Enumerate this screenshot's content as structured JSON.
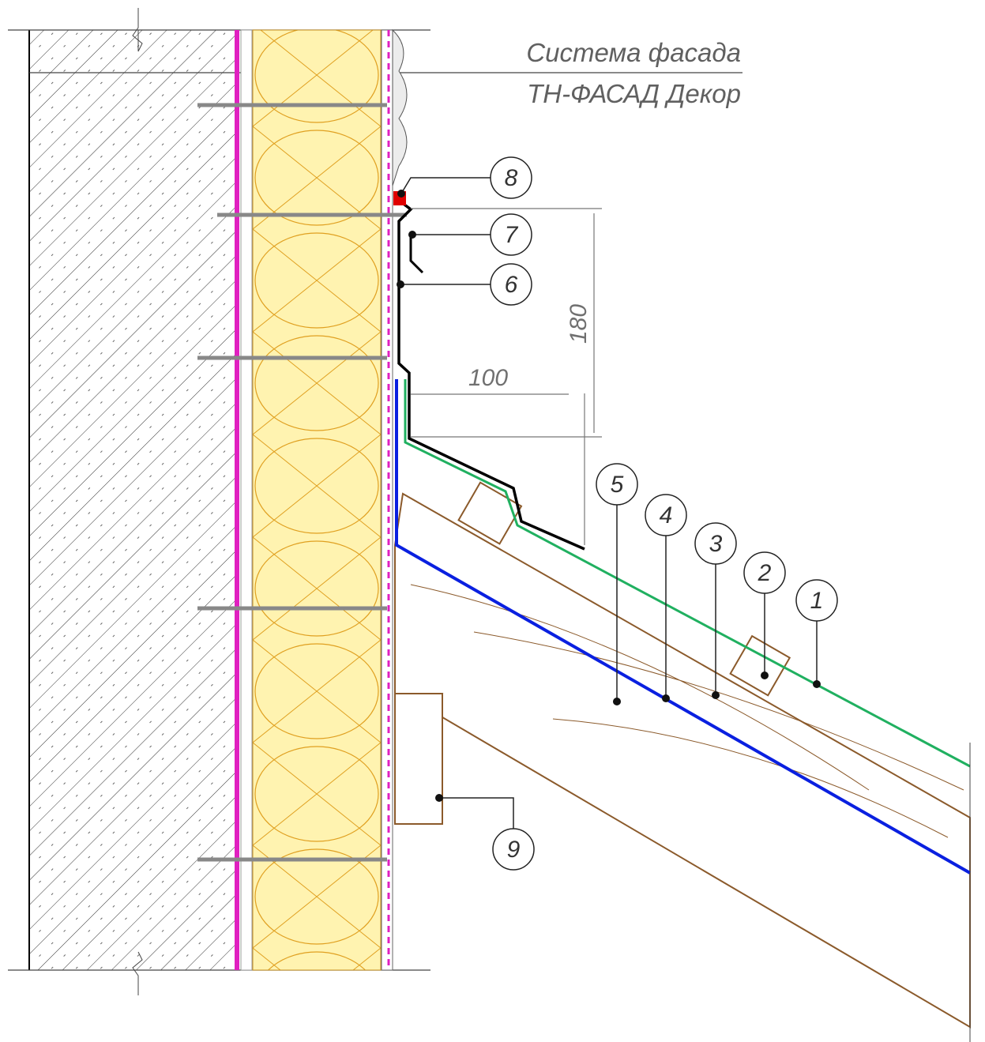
{
  "title": {
    "line1": "Система фасада",
    "line2": "ТН-ФАСАД Декор"
  },
  "dimensions": [
    {
      "label": 180
    },
    {
      "label": 100
    }
  ],
  "callouts": [
    {
      "label": 1
    },
    {
      "label": 2
    },
    {
      "label": 3
    },
    {
      "label": 4
    },
    {
      "label": 5
    },
    {
      "label": 6
    },
    {
      "label": 7
    },
    {
      "label": 8
    },
    {
      "label": 9
    }
  ]
}
